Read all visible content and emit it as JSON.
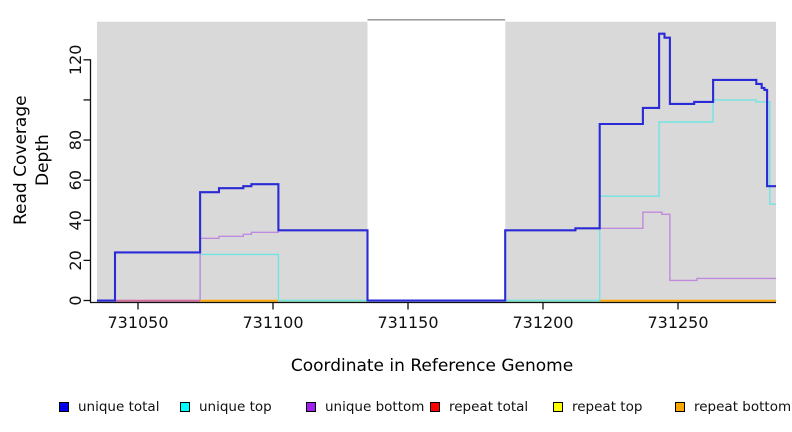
{
  "chart_data": {
    "type": "line",
    "step_interpolation": true,
    "x_axis": {
      "title": "Coordinate in Reference Genome",
      "ticks": [
        {
          "value": 731050,
          "label": "731050"
        },
        {
          "value": 731100,
          "label": "731100"
        },
        {
          "value": 731150,
          "label": "731150"
        },
        {
          "value": 731200,
          "label": "731200"
        },
        {
          "value": 731250,
          "label": "731250"
        }
      ],
      "range": [
        731034.8,
        731286.3
      ]
    },
    "y_axis": {
      "title": "Read Coverage Depth",
      "ticks": [
        {
          "value": 0,
          "label": "0"
        },
        {
          "value": 20,
          "label": "20"
        },
        {
          "value": 40,
          "label": "40"
        },
        {
          "value": 60,
          "label": "60"
        },
        {
          "value": 80,
          "label": "80"
        },
        {
          "value": 100,
          "label": ""
        },
        {
          "value": 120,
          "label": "120"
        }
      ],
      "range": [
        0,
        139
      ]
    },
    "plot_background_color": "#d9d9d9",
    "masked_region": {
      "from": 731135,
      "to": 731186,
      "fill": "#ffffff",
      "top_border_color": "#8f8f8f"
    },
    "series": [
      {
        "name": "unique top",
        "color": "#72e4e4",
        "line_width": 1.4,
        "points": [
          [
            731073,
            0
          ],
          [
            731073,
            23
          ],
          [
            731102,
            0
          ],
          [
            731221,
            52
          ],
          [
            731243,
            89
          ],
          [
            731263,
            100
          ],
          [
            731279,
            99
          ],
          [
            731284,
            48
          ],
          [
            731286.3,
            48
          ]
        ]
      },
      {
        "name": "unique bottom",
        "color": "#c08ade",
        "line_width": 1.4,
        "points": [
          [
            731073,
            0
          ],
          [
            731073,
            31
          ],
          [
            731080,
            32
          ],
          [
            731089,
            33
          ],
          [
            731092,
            34
          ],
          [
            731102,
            35
          ],
          [
            731135,
            0
          ],
          [
            731186,
            35
          ],
          [
            731212,
            36
          ],
          [
            731237,
            44
          ],
          [
            731244,
            43
          ],
          [
            731247,
            10
          ],
          [
            731257,
            11
          ],
          [
            731286.3,
            11
          ]
        ]
      },
      {
        "name": "unique total",
        "color": "#2a2ad6",
        "line_width": 2.1,
        "points": [
          [
            731034.8,
            0
          ],
          [
            731041.5,
            24
          ],
          [
            731073,
            54
          ],
          [
            731080,
            56
          ],
          [
            731089,
            57
          ],
          [
            731092,
            58
          ],
          [
            731102,
            35
          ],
          [
            731135,
            0
          ],
          [
            731186,
            35
          ],
          [
            731212,
            36
          ],
          [
            731221,
            88
          ],
          [
            731237,
            96
          ],
          [
            731243,
            133
          ],
          [
            731245,
            131
          ],
          [
            731247,
            98
          ],
          [
            731256,
            99
          ],
          [
            731263,
            110
          ],
          [
            731279,
            108
          ],
          [
            731281,
            106
          ],
          [
            731282,
            105
          ],
          [
            731283,
            57
          ],
          [
            731286.3,
            57
          ]
        ]
      }
    ],
    "zero_line_segments": [
      {
        "from": 731034.8,
        "to": 731041.5,
        "color": "#7a68e8"
      },
      {
        "from": 731041.5,
        "to": 731073,
        "color": "#d06898"
      },
      {
        "from": 731073,
        "to": 731102,
        "color": "#ffa500"
      },
      {
        "from": 731102,
        "to": 731135,
        "color": "#90d690"
      },
      {
        "from": 731135,
        "to": 731186,
        "color": "#6a58e0"
      },
      {
        "from": 731186,
        "to": 731221,
        "color": "#90d690"
      },
      {
        "from": 731221,
        "to": 731286.3,
        "color": "#ffa500"
      }
    ],
    "legend": [
      {
        "label": "unique total",
        "color": "#0000ee"
      },
      {
        "label": "unique top",
        "color": "#00ffff"
      },
      {
        "label": "unique bottom",
        "color": "#a020f0"
      },
      {
        "label": "repeat total",
        "color": "#ff0000"
      },
      {
        "label": "repeat top",
        "color": "#ffff00"
      },
      {
        "label": "repeat bottom",
        "color": "#ffa500"
      }
    ]
  }
}
